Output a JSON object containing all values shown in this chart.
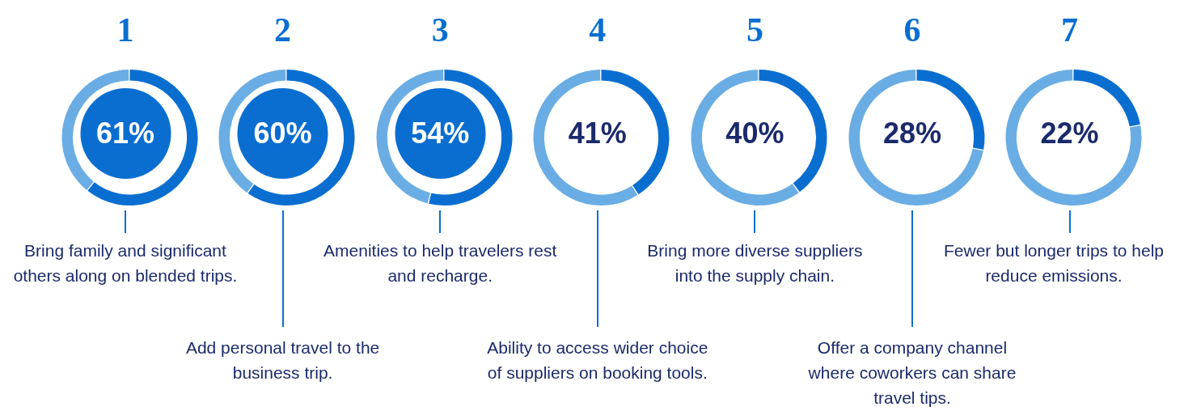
{
  "chart_data": [
    {
      "type": "donut",
      "title": "1",
      "values": [
        61,
        39
      ],
      "colors": [
        "#0a6ed1",
        "#6aade4"
      ],
      "annotations": [
        "61%",
        "Bring family and significant others along on blended trips."
      ]
    },
    {
      "type": "donut",
      "title": "2",
      "values": [
        60,
        40
      ],
      "colors": [
        "#0a6ed1",
        "#6aade4"
      ],
      "annotations": [
        "60%",
        "Add personal travel to the business trip."
      ]
    },
    {
      "type": "donut",
      "title": "3",
      "values": [
        54,
        46
      ],
      "colors": [
        "#0a6ed1",
        "#6aade4"
      ],
      "annotations": [
        "54%",
        "Amenities to help travelers rest and recharge."
      ]
    },
    {
      "type": "donut",
      "title": "4",
      "values": [
        41,
        59
      ],
      "colors": [
        "#0a6ed1",
        "#6aade4"
      ],
      "annotations": [
        "41%",
        "Ability to access wider choice of suppliers on booking tools."
      ]
    },
    {
      "type": "donut",
      "title": "5",
      "values": [
        40,
        60
      ],
      "colors": [
        "#0a6ed1",
        "#6aade4"
      ],
      "annotations": [
        "40%",
        "Bring more diverse suppliers into the supply chain."
      ]
    },
    {
      "type": "donut",
      "title": "6",
      "values": [
        28,
        72
      ],
      "colors": [
        "#0a6ed1",
        "#6aade4"
      ],
      "annotations": [
        "28%",
        "Offer a company channel where coworkers can share travel tips."
      ]
    },
    {
      "type": "donut",
      "title": "7",
      "values": [
        22,
        78
      ],
      "colors": [
        "#0a6ed1",
        "#6aade4"
      ],
      "annotations": [
        "22%",
        "Fewer but longer trips to help reduce emissions."
      ]
    }
  ]
}
